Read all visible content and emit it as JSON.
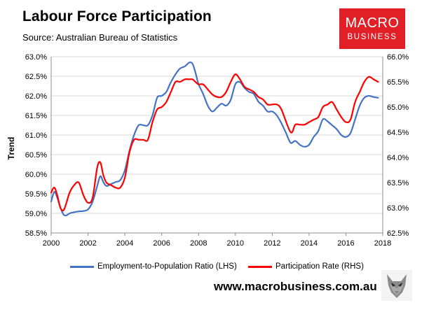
{
  "header": {
    "title": "Labour Force Participation",
    "source": "Source: Australian Bureau of Statistics"
  },
  "logo": {
    "line1": "MACRO",
    "line2": "BUSINESS",
    "color": "#e11f26"
  },
  "footer": {
    "website": "www.macrobusiness.com.au"
  },
  "chart_data": {
    "type": "line",
    "ylabel": "Trend",
    "x_ticks": [
      "2000",
      "2002",
      "2004",
      "2006",
      "2008",
      "2010",
      "2012",
      "2014",
      "2016",
      "2018"
    ],
    "xlim": [
      2000,
      2018
    ],
    "y_left_ticks": [
      "63.0%",
      "62.5%",
      "62.0%",
      "61.5%",
      "61.0%",
      "60.5%",
      "60.0%",
      "59.5%",
      "59.0%",
      "58.5%"
    ],
    "ylim_left": [
      58.5,
      63.0
    ],
    "y_right_ticks": [
      "66.0%",
      "65.5%",
      "65.0%",
      "64.5%",
      "64.0%",
      "63.5%",
      "63.0%",
      "62.5%"
    ],
    "ylim_right": [
      62.5,
      66.0
    ],
    "grid": "horizontal",
    "legend_position": "bottom",
    "series": [
      {
        "name": "Employment-to-Population Ratio (LHS)",
        "axis": "left",
        "color": "#4472c4",
        "points": [
          [
            2000.0,
            59.3
          ],
          [
            2000.17,
            59.55
          ],
          [
            2000.33,
            59.4
          ],
          [
            2000.5,
            59.15
          ],
          [
            2000.67,
            58.97
          ],
          [
            2000.83,
            58.95
          ],
          [
            2001.0,
            59.0
          ],
          [
            2001.25,
            59.03
          ],
          [
            2001.5,
            59.05
          ],
          [
            2001.75,
            59.06
          ],
          [
            2002.0,
            59.1
          ],
          [
            2002.25,
            59.3
          ],
          [
            2002.5,
            59.7
          ],
          [
            2002.67,
            59.95
          ],
          [
            2002.83,
            59.8
          ],
          [
            2003.0,
            59.7
          ],
          [
            2003.25,
            59.75
          ],
          [
            2003.5,
            59.8
          ],
          [
            2003.75,
            59.85
          ],
          [
            2004.0,
            60.1
          ],
          [
            2004.25,
            60.6
          ],
          [
            2004.5,
            61.0
          ],
          [
            2004.75,
            61.25
          ],
          [
            2005.0,
            61.25
          ],
          [
            2005.25,
            61.25
          ],
          [
            2005.5,
            61.5
          ],
          [
            2005.75,
            61.95
          ],
          [
            2006.0,
            62.0
          ],
          [
            2006.25,
            62.1
          ],
          [
            2006.5,
            62.35
          ],
          [
            2006.75,
            62.55
          ],
          [
            2007.0,
            62.7
          ],
          [
            2007.25,
            62.75
          ],
          [
            2007.5,
            62.85
          ],
          [
            2007.67,
            62.82
          ],
          [
            2007.83,
            62.6
          ],
          [
            2008.0,
            62.3
          ],
          [
            2008.25,
            62.05
          ],
          [
            2008.5,
            61.75
          ],
          [
            2008.75,
            61.6
          ],
          [
            2009.0,
            61.7
          ],
          [
            2009.25,
            61.8
          ],
          [
            2009.5,
            61.75
          ],
          [
            2009.75,
            61.9
          ],
          [
            2010.0,
            62.3
          ],
          [
            2010.25,
            62.35
          ],
          [
            2010.5,
            62.2
          ],
          [
            2010.75,
            62.1
          ],
          [
            2011.0,
            62.05
          ],
          [
            2011.25,
            61.85
          ],
          [
            2011.5,
            61.75
          ],
          [
            2011.75,
            61.6
          ],
          [
            2012.0,
            61.6
          ],
          [
            2012.25,
            61.5
          ],
          [
            2012.5,
            61.3
          ],
          [
            2012.75,
            61.05
          ],
          [
            2013.0,
            60.8
          ],
          [
            2013.25,
            60.85
          ],
          [
            2013.5,
            60.75
          ],
          [
            2013.75,
            60.7
          ],
          [
            2014.0,
            60.75
          ],
          [
            2014.25,
            60.95
          ],
          [
            2014.5,
            61.1
          ],
          [
            2014.75,
            61.4
          ],
          [
            2015.0,
            61.35
          ],
          [
            2015.25,
            61.25
          ],
          [
            2015.5,
            61.15
          ],
          [
            2015.75,
            61.0
          ],
          [
            2016.0,
            60.95
          ],
          [
            2016.25,
            61.05
          ],
          [
            2016.5,
            61.4
          ],
          [
            2016.75,
            61.75
          ],
          [
            2017.0,
            61.95
          ],
          [
            2017.25,
            62.0
          ],
          [
            2017.5,
            61.97
          ],
          [
            2017.75,
            61.95
          ]
        ]
      },
      {
        "name": "Participation Rate (RHS)",
        "axis": "right",
        "color": "#ff0000",
        "points": [
          [
            2000.0,
            63.3
          ],
          [
            2000.17,
            63.4
          ],
          [
            2000.33,
            63.25
          ],
          [
            2000.5,
            63.0
          ],
          [
            2000.67,
            62.95
          ],
          [
            2000.83,
            63.1
          ],
          [
            2001.0,
            63.3
          ],
          [
            2001.25,
            63.45
          ],
          [
            2001.5,
            63.5
          ],
          [
            2001.75,
            63.25
          ],
          [
            2002.0,
            63.1
          ],
          [
            2002.25,
            63.2
          ],
          [
            2002.5,
            63.8
          ],
          [
            2002.67,
            63.9
          ],
          [
            2002.83,
            63.65
          ],
          [
            2003.0,
            63.5
          ],
          [
            2003.25,
            63.45
          ],
          [
            2003.5,
            63.4
          ],
          [
            2003.75,
            63.4
          ],
          [
            2004.0,
            63.6
          ],
          [
            2004.25,
            64.1
          ],
          [
            2004.5,
            64.35
          ],
          [
            2004.75,
            64.35
          ],
          [
            2005.0,
            64.35
          ],
          [
            2005.25,
            64.35
          ],
          [
            2005.5,
            64.7
          ],
          [
            2005.75,
            64.95
          ],
          [
            2006.0,
            65.0
          ],
          [
            2006.25,
            65.1
          ],
          [
            2006.5,
            65.3
          ],
          [
            2006.75,
            65.5
          ],
          [
            2007.0,
            65.5
          ],
          [
            2007.25,
            65.55
          ],
          [
            2007.5,
            65.55
          ],
          [
            2007.67,
            65.55
          ],
          [
            2007.83,
            65.5
          ],
          [
            2008.0,
            65.45
          ],
          [
            2008.25,
            65.45
          ],
          [
            2008.5,
            65.35
          ],
          [
            2008.75,
            65.25
          ],
          [
            2009.0,
            65.2
          ],
          [
            2009.25,
            65.2
          ],
          [
            2009.5,
            65.3
          ],
          [
            2009.75,
            65.5
          ],
          [
            2010.0,
            65.65
          ],
          [
            2010.25,
            65.55
          ],
          [
            2010.5,
            65.4
          ],
          [
            2010.75,
            65.35
          ],
          [
            2011.0,
            65.3
          ],
          [
            2011.25,
            65.2
          ],
          [
            2011.5,
            65.15
          ],
          [
            2011.75,
            65.05
          ],
          [
            2012.0,
            65.05
          ],
          [
            2012.25,
            65.05
          ],
          [
            2012.5,
            64.95
          ],
          [
            2013.0,
            64.5
          ],
          [
            2013.25,
            64.65
          ],
          [
            2013.5,
            64.65
          ],
          [
            2013.75,
            64.65
          ],
          [
            2014.0,
            64.7
          ],
          [
            2014.25,
            64.75
          ],
          [
            2014.5,
            64.8
          ],
          [
            2014.75,
            65.0
          ],
          [
            2015.0,
            65.05
          ],
          [
            2015.25,
            65.1
          ],
          [
            2015.5,
            64.95
          ],
          [
            2015.75,
            64.8
          ],
          [
            2016.0,
            64.7
          ],
          [
            2016.25,
            64.75
          ],
          [
            2016.5,
            65.1
          ],
          [
            2016.75,
            65.3
          ],
          [
            2017.0,
            65.5
          ],
          [
            2017.25,
            65.6
          ],
          [
            2017.5,
            65.55
          ],
          [
            2017.75,
            65.5
          ]
        ]
      }
    ]
  }
}
